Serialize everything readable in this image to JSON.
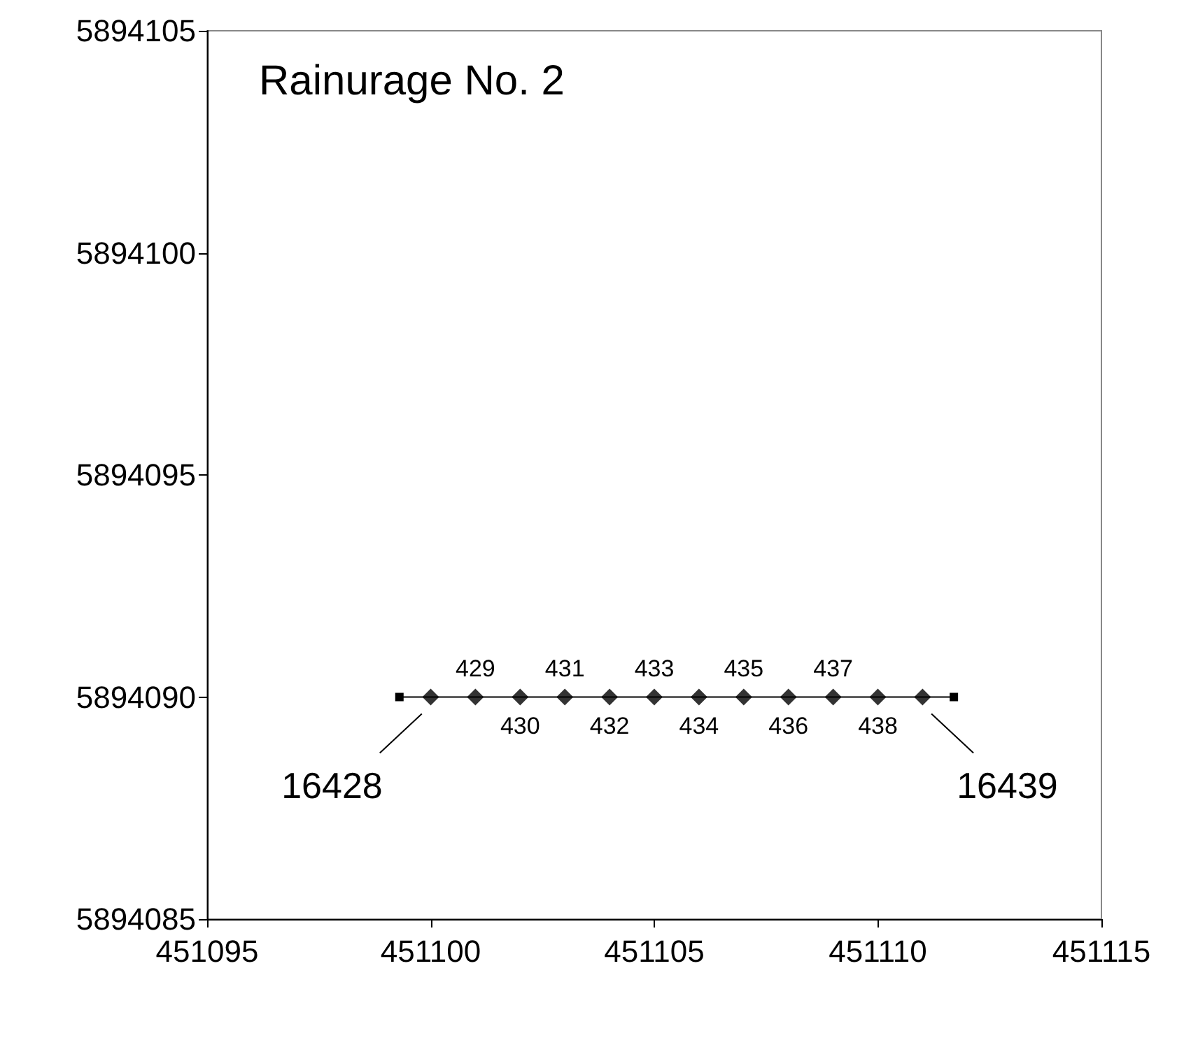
{
  "chart_data": {
    "type": "scatter",
    "title": "Rainurage No. 2",
    "series": [
      {
        "type": "line",
        "color": "#000000",
        "marker": "square",
        "x": [
          451099.3,
          451111.7
        ],
        "values": [
          5894090,
          5894090
        ]
      },
      {
        "color": "#000000",
        "marker": "diamond",
        "x": [
          451100,
          451101,
          451102,
          451103,
          451104,
          451105,
          451106,
          451107,
          451108,
          451109,
          451110,
          451111
        ],
        "values": [
          5894090,
          5894090,
          5894090,
          5894090,
          5894090,
          5894090,
          5894090,
          5894090,
          5894090,
          5894090,
          5894090,
          5894090
        ]
      }
    ],
    "annotations": [
      {
        "text": "16428",
        "x": 451099.3,
        "y": 5894090
      },
      {
        "text": "429",
        "x": 451101,
        "y": 5894090
      },
      {
        "text": "430",
        "x": 451102,
        "y": 5894090
      },
      {
        "text": "431",
        "x": 451103,
        "y": 5894090
      },
      {
        "text": "432",
        "x": 451104,
        "y": 5894090
      },
      {
        "text": "433",
        "x": 451105,
        "y": 5894090
      },
      {
        "text": "434",
        "x": 451106,
        "y": 5894090
      },
      {
        "text": "435",
        "x": 451107,
        "y": 5894090
      },
      {
        "text": "436",
        "x": 451108,
        "y": 5894090
      },
      {
        "text": "437",
        "x": 451109,
        "y": 5894090
      },
      {
        "text": "438",
        "x": 451110,
        "y": 5894090
      },
      {
        "text": "16439",
        "x": 451111.7,
        "y": 5894090
      }
    ],
    "xlim": [
      451095,
      451115
    ],
    "xticks": [
      451095,
      451100,
      451105,
      451110,
      451115
    ],
    "ylim": [
      5894085,
      5894105
    ],
    "yticks": [
      5894085,
      5894090,
      5894095,
      5894100,
      5894105
    ],
    "grid": false,
    "legend": false,
    "line_style": "solid"
  }
}
